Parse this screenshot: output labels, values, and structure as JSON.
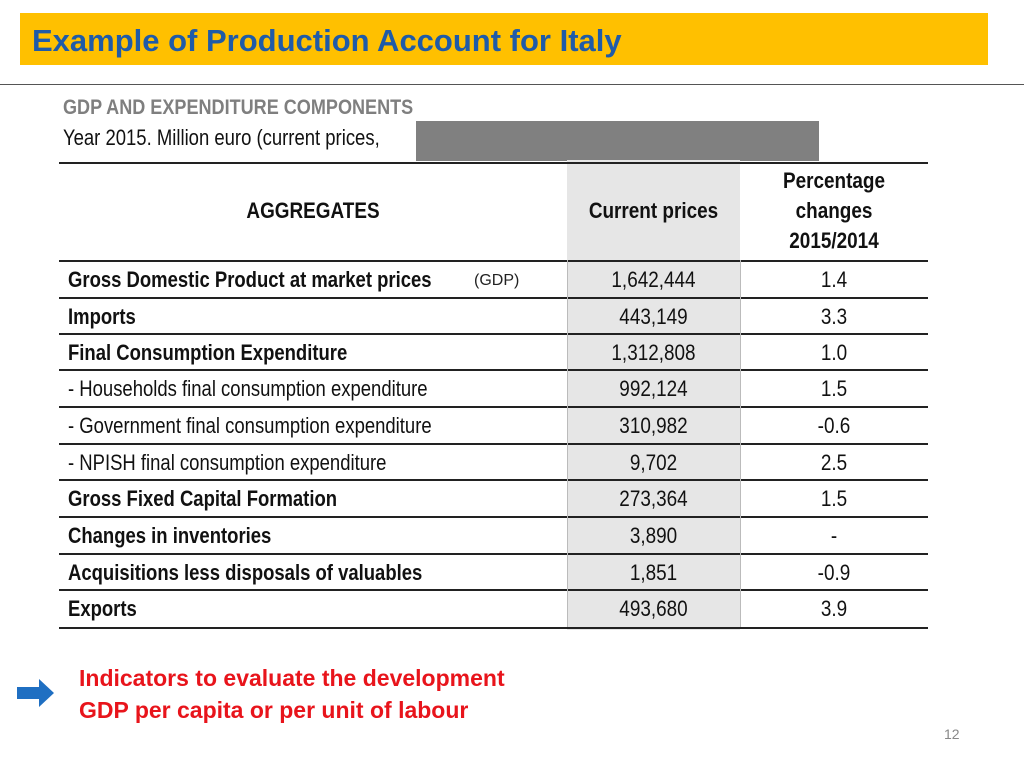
{
  "slide": {
    "title": "Example of Production Account for Italy",
    "page_number": "12",
    "colors": {
      "title_bg": "#FFC000",
      "title_text": "#1F5BA8",
      "indicator_text": "#E8141B",
      "arrow": "#1F6FC2"
    }
  },
  "table": {
    "heading": "GDP AND EXPENDITURE COMPONENTS",
    "subheading": "Year  2015. Million euro (current prices,",
    "headers": {
      "aggregates": "AGGREGATES",
      "current_prices": "Current  prices",
      "pct_line1": "Percentage",
      "pct_line2": "changes",
      "pct_line3": "2015/2014"
    },
    "rows": [
      {
        "label": "Gross Domestic Product at market prices",
        "value": "1,642,444",
        "change": "1.4"
      },
      {
        "label": "Imports",
        "value": "443,149",
        "change": "3.3"
      },
      {
        "label": "Final Consumption Expenditure",
        "value": "1,312,808",
        "change": "1.0"
      },
      {
        "label": "- Households final consumption expenditure",
        "value": "992,124",
        "change": "1.5"
      },
      {
        "label": "- Government final consumption expenditure",
        "value": "310,982",
        "change": "-0.6"
      },
      {
        "label": "- NPISH final consumption expenditure",
        "value": "9,702",
        "change": "2.5"
      },
      {
        "label": "Gross Fixed Capital Formation",
        "value": "273,364",
        "change": "1.5"
      },
      {
        "label": "Changes in inventories",
        "value": "3,890",
        "change": "-"
      },
      {
        "label": "Acquisitions less disposals of valuables",
        "value": "1,851",
        "change": "-0.9"
      },
      {
        "label": "Exports",
        "value": "493,680",
        "change": "3.9"
      }
    ],
    "gdp_note": "(GDP)"
  },
  "indicators": {
    "icon": "right-arrow-icon",
    "line1": "Indicators to evaluate the development",
    "line2": "GDP per capita  or per unit of labour"
  }
}
